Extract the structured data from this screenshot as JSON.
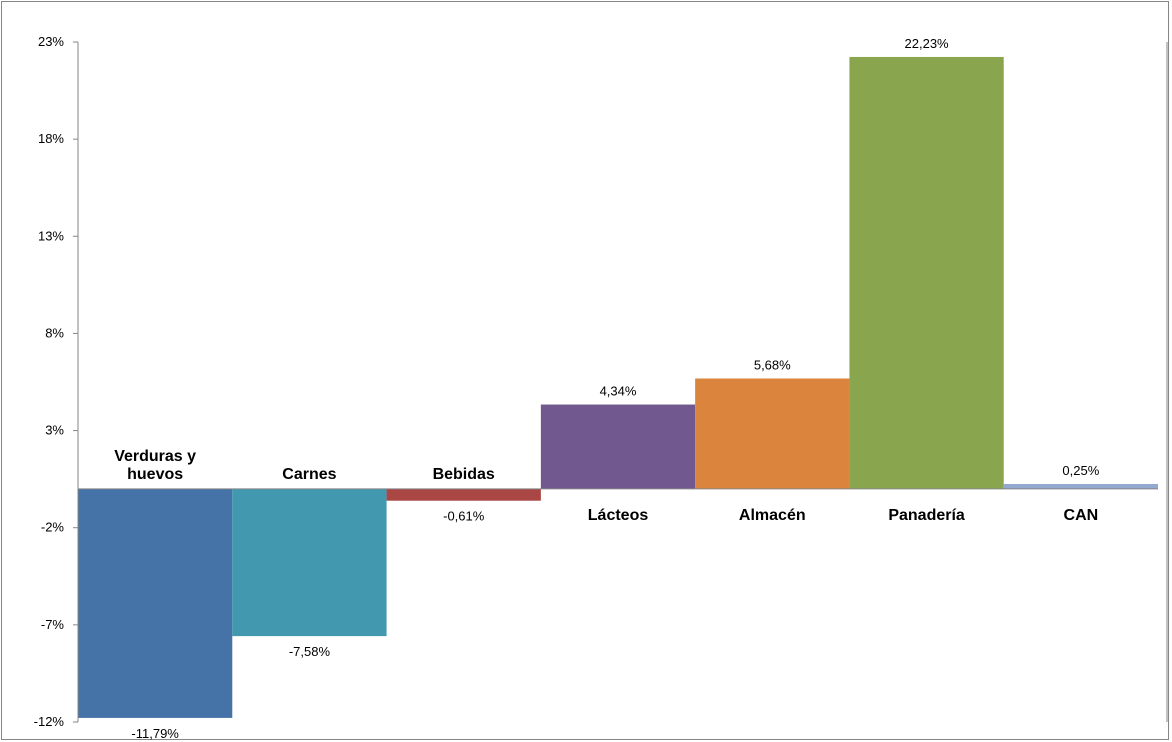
{
  "chart_data": {
    "type": "bar",
    "categories": [
      [
        "Verduras y",
        "huevos"
      ],
      [
        "Carnes"
      ],
      [
        "Bebidas"
      ],
      [
        "Lácteos"
      ],
      [
        "Almacén"
      ],
      [
        "Panadería"
      ],
      [
        "CAN"
      ]
    ],
    "values": [
      -11.79,
      -7.58,
      -0.61,
      4.34,
      5.68,
      22.23,
      0.25
    ],
    "data_labels": [
      "-11,79%",
      "-7,58%",
      "-0,61%",
      "4,34%",
      "5,68%",
      "22,23%",
      "0,25%"
    ],
    "colors": [
      "#4573A7",
      "#4198AF",
      "#AA4643",
      "#71588F",
      "#DB843D",
      "#89A54E",
      "#93A9CF"
    ],
    "yticks": [
      23,
      18,
      13,
      8,
      3,
      -2,
      -7,
      -12
    ],
    "ytick_labels": [
      "23%",
      "18%",
      "13%",
      "8%",
      "3%",
      "-2%",
      "-7%",
      "-12%"
    ],
    "ylim": [
      -12,
      23
    ],
    "title": "",
    "xlabel": "",
    "ylabel": "",
    "grid": false,
    "legend": "none"
  }
}
